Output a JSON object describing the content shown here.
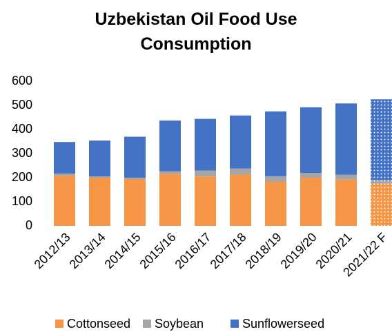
{
  "chart_data": {
    "type": "stacked_bar",
    "title": "Uzbekistan Oil Food Use Consumption",
    "categories": [
      "2012/13",
      "2013/14",
      "2014/15",
      "2015/16",
      "2016/17",
      "2017/18",
      "2018/19",
      "2019/20",
      "2020/21",
      "2021/22 F"
    ],
    "series": [
      {
        "name": "Cottonseed",
        "color": "#f79646",
        "values": [
          208,
          200,
          193,
          215,
          205,
          213,
          183,
          200,
          192,
          175
        ]
      },
      {
        "name": "Soybean",
        "color": "#a5a5a5",
        "values": [
          9,
          5,
          7,
          12,
          25,
          25,
          23,
          20,
          20,
          15
        ]
      },
      {
        "name": "Sunflowerseed",
        "color": "#4472c4",
        "values": [
          131,
          149,
          170,
          210,
          214,
          220,
          269,
          272,
          296,
          335
        ]
      }
    ],
    "patterned_categories": [
      9
    ],
    "ylim": [
      0,
      600
    ],
    "yticks": [
      0,
      100,
      200,
      300,
      400,
      500,
      600
    ],
    "grid": false,
    "legend": "bottom"
  }
}
